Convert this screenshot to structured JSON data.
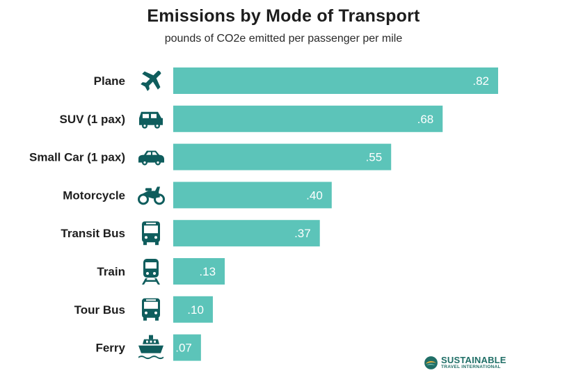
{
  "header": {
    "title": "Emissions by Mode of Transport",
    "subtitle": "pounds of CO2e emitted per passenger per mile"
  },
  "colors": {
    "bar": "#5cc4b9",
    "icon": "#0f5d5d",
    "value_text": "#ffffff",
    "brand": "#1f6e66"
  },
  "chart_data": {
    "type": "bar",
    "orientation": "horizontal",
    "title": "Emissions by Mode of Transport",
    "subtitle": "pounds of CO2e emitted per passenger per mile",
    "xlabel": "",
    "ylabel": "",
    "grid": false,
    "xlim": [
      0,
      0.82
    ],
    "categories": [
      "Plane",
      "SUV (1 pax)",
      "Small Car (1 pax)",
      "Motorcycle",
      "Transit Bus",
      "Train",
      "Tour Bus",
      "Ferry"
    ],
    "values": [
      0.82,
      0.68,
      0.55,
      0.4,
      0.37,
      0.13,
      0.1,
      0.07
    ],
    "value_labels": [
      ".82",
      ".68",
      ".55",
      ".40",
      ".37",
      ".13",
      ".10",
      ".07"
    ],
    "icons": [
      "plane-icon",
      "suv-icon",
      "small-car-icon",
      "motorcycle-icon",
      "transit-bus-icon",
      "train-icon",
      "tour-bus-icon",
      "ferry-icon"
    ]
  },
  "logo": {
    "line1": "SUSTAINABLE",
    "line2": "TRAVEL INTERNATIONAL"
  }
}
